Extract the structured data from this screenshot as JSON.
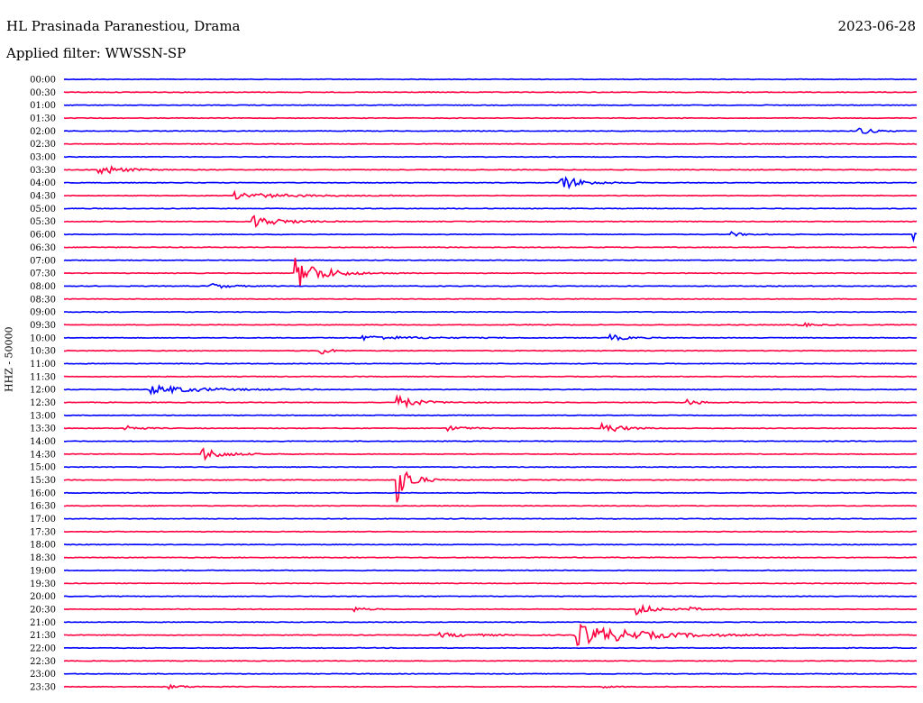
{
  "header": {
    "station": "HL Prasinada Paranestiou, Drama",
    "date": "2023-06-28",
    "filter": "Applied filter: WWSSN-SP"
  },
  "chart_data": {
    "type": "line",
    "title": "HL Prasinada Paranestiou, Drama",
    "ylabel": "HHZ - 50000",
    "row_labels": [
      "00:00",
      "00:30",
      "01:00",
      "01:30",
      "02:00",
      "02:30",
      "03:00",
      "03:30",
      "04:00",
      "04:30",
      "05:00",
      "05:30",
      "06:00",
      "06:30",
      "07:00",
      "07:30",
      "08:00",
      "08:30",
      "09:00",
      "09:30",
      "10:00",
      "10:30",
      "11:00",
      "11:30",
      "12:00",
      "12:30",
      "13:00",
      "13:30",
      "14:00",
      "14:30",
      "15:00",
      "15:30",
      "16:00",
      "16:30",
      "17:00",
      "17:30",
      "18:00",
      "18:30",
      "19:00",
      "19:30",
      "20:00",
      "20:30",
      "21:00",
      "21:30",
      "22:00",
      "22:30",
      "23:00",
      "23:30"
    ],
    "row_colors": [
      "#0000ff",
      "#ff0040"
    ],
    "events": [
      {
        "row": 4,
        "t": 0.93,
        "amp": 0.9,
        "dur": 0.03
      },
      {
        "row": 7,
        "t": 0.04,
        "amp": 1.1,
        "dur": 0.05
      },
      {
        "row": 8,
        "t": 0.58,
        "amp": 1.5,
        "dur": 0.05
      },
      {
        "row": 9,
        "t": 0.2,
        "amp": 0.6,
        "dur": 0.12
      },
      {
        "row": 11,
        "t": 0.22,
        "amp": 1.3,
        "dur": 0.06
      },
      {
        "row": 12,
        "t": 0.78,
        "amp": 0.5,
        "dur": 0.03
      },
      {
        "row": 12,
        "t": 0.995,
        "amp": 1.5,
        "dur": 0.01
      },
      {
        "row": 15,
        "t": 0.27,
        "amp": 3.2,
        "dur": 0.06
      },
      {
        "row": 16,
        "t": 0.17,
        "amp": 0.6,
        "dur": 0.04
      },
      {
        "row": 19,
        "t": 0.86,
        "amp": 0.5,
        "dur": 0.03
      },
      {
        "row": 20,
        "t": 0.35,
        "amp": 0.4,
        "dur": 0.12
      },
      {
        "row": 20,
        "t": 0.64,
        "amp": 0.6,
        "dur": 0.04
      },
      {
        "row": 21,
        "t": 0.3,
        "amp": 1.0,
        "dur": 0.02
      },
      {
        "row": 24,
        "t": 0.1,
        "amp": 0.8,
        "dur": 0.12
      },
      {
        "row": 25,
        "t": 0.39,
        "amp": 1.2,
        "dur": 0.05
      },
      {
        "row": 25,
        "t": 0.73,
        "amp": 0.6,
        "dur": 0.03
      },
      {
        "row": 27,
        "t": 0.07,
        "amp": 0.7,
        "dur": 0.03
      },
      {
        "row": 27,
        "t": 0.45,
        "amp": 0.4,
        "dur": 0.05
      },
      {
        "row": 27,
        "t": 0.63,
        "amp": 1.3,
        "dur": 0.04
      },
      {
        "row": 29,
        "t": 0.16,
        "amp": 1.3,
        "dur": 0.05
      },
      {
        "row": 31,
        "t": 0.39,
        "amp": 4.5,
        "dur": 0.03
      },
      {
        "row": 41,
        "t": 0.34,
        "amp": 0.4,
        "dur": 0.03
      },
      {
        "row": 41,
        "t": 0.67,
        "amp": 1.2,
        "dur": 0.04
      },
      {
        "row": 41,
        "t": 0.73,
        "amp": 0.4,
        "dur": 0.03
      },
      {
        "row": 43,
        "t": 0.44,
        "amp": 0.4,
        "dur": 0.1
      },
      {
        "row": 43,
        "t": 0.6,
        "amp": 2.0,
        "dur": 0.15
      },
      {
        "row": 47,
        "t": 0.12,
        "amp": 0.4,
        "dur": 0.04
      },
      {
        "row": 47,
        "t": 0.63,
        "amp": 0.3,
        "dur": 0.02
      }
    ]
  }
}
